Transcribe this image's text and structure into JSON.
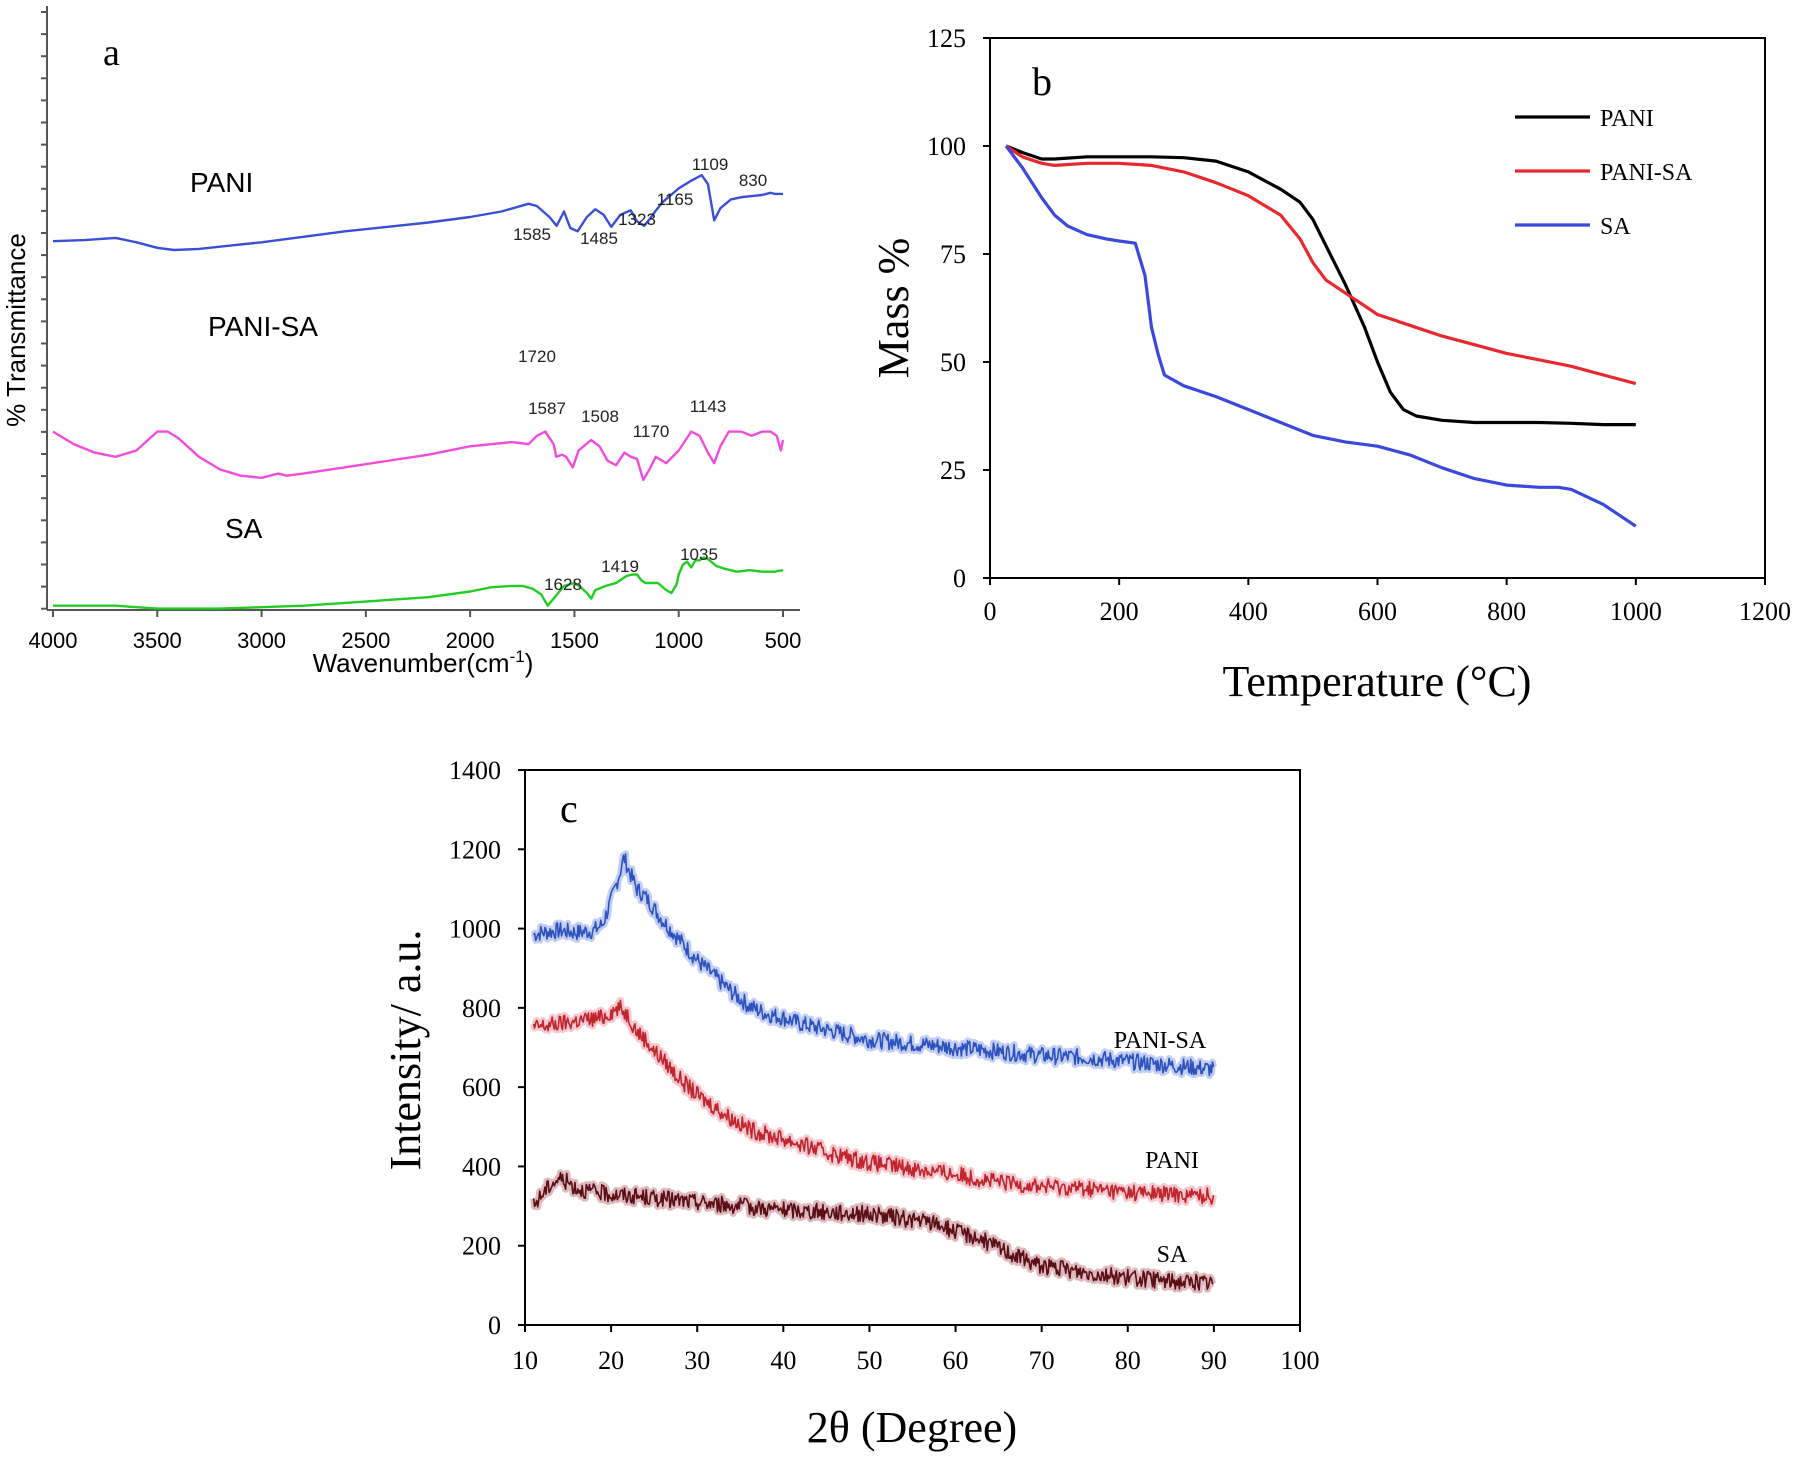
{
  "chart_data": [
    {
      "panel_label": "a",
      "type": "line",
      "xlabel": "Wavenumber(cm",
      "xlabel_sup": "-1",
      "xlabel_end": ")",
      "ylabel": "% Transmittance",
      "xlim": [
        4000,
        500
      ],
      "x_reversed": true,
      "y_ticks_labeled": false,
      "xticks": [
        4000,
        3500,
        3000,
        2500,
        2000,
        1500,
        1000,
        500
      ],
      "series": [
        {
          "name": "PANI",
          "color": "#3a4fd6",
          "x": [
            4000,
            3850,
            3700,
            3600,
            3500,
            3420,
            3300,
            3150,
            3000,
            2800,
            2600,
            2400,
            2200,
            2000,
            1850,
            1720,
            1680,
            1620,
            1585,
            1550,
            1520,
            1485,
            1440,
            1400,
            1360,
            1323,
            1280,
            1230,
            1200,
            1165,
            1140,
            1109,
            1080,
            1000,
            940,
            890,
            860,
            830,
            800,
            750,
            700,
            650,
            600,
            560,
            540,
            500
          ],
          "y": [
            58,
            59,
            61,
            57,
            52,
            50,
            51,
            54,
            57,
            62,
            67,
            71,
            75,
            80,
            85,
            92,
            90,
            80,
            72,
            85,
            70,
            67,
            80,
            87,
            82,
            71,
            82,
            86,
            76,
            72,
            78,
            86,
            93,
            106,
            113,
            118,
            110,
            77,
            88,
            96,
            98,
            99,
            100,
            102,
            101,
            101
          ]
        },
        {
          "name": "PANI-SA",
          "color": "#f04ddc",
          "x": [
            4000,
            3900,
            3800,
            3700,
            3600,
            3500,
            3450,
            3400,
            3300,
            3200,
            3100,
            3000,
            2920,
            2880,
            2800,
            2600,
            2400,
            2200,
            2000,
            1900,
            1800,
            1720,
            1680,
            1640,
            1600,
            1587,
            1560,
            1540,
            1508,
            1480,
            1420,
            1380,
            1340,
            1300,
            1260,
            1230,
            1200,
            1170,
            1140,
            1110,
            1060,
            1000,
            940,
            900,
            860,
            830,
            800,
            760,
            700,
            650,
            600,
            560,
            530,
            510,
            500
          ],
          "y": [
            54,
            48,
            44,
            42,
            45,
            54,
            54,
            51,
            42,
            36,
            33,
            32,
            34,
            33,
            34,
            37,
            40,
            43,
            47,
            48,
            49,
            48,
            52,
            54,
            48,
            42,
            43,
            42,
            37,
            45,
            50,
            47,
            40,
            38,
            44,
            42,
            41,
            31,
            36,
            42,
            39,
            45,
            54,
            52,
            44,
            39,
            47,
            54,
            54,
            52,
            54,
            54,
            52,
            45,
            50
          ]
        },
        {
          "name": "SA",
          "color": "#22cc22",
          "x": [
            4000,
            3900,
            3800,
            3700,
            3600,
            3500,
            3400,
            3300,
            3200,
            3000,
            2800,
            2600,
            2400,
            2200,
            2000,
            1900,
            1800,
            1750,
            1700,
            1660,
            1628,
            1600,
            1550,
            1500,
            1470,
            1440,
            1419,
            1400,
            1350,
            1300,
            1250,
            1220,
            1200,
            1180,
            1160,
            1100,
            1060,
            1035,
            1010,
            1000,
            980,
            960,
            940,
            920,
            900,
            880,
            860,
            820,
            780,
            720,
            660,
            600,
            540,
            500
          ],
          "y": [
            3,
            3,
            3,
            3,
            2,
            1,
            1,
            1,
            1,
            2,
            3,
            5,
            7,
            9,
            13,
            16,
            17,
            17,
            15,
            11,
            3,
            8,
            17,
            19,
            16,
            12,
            8,
            14,
            17,
            19,
            24,
            25,
            25,
            21,
            19,
            19,
            14,
            12,
            18,
            25,
            32,
            34,
            30,
            35,
            35,
            37,
            36,
            31,
            29,
            27,
            28,
            27,
            27,
            28
          ]
        }
      ],
      "series_labels": [
        "PANI",
        "PANI-SA",
        "SA"
      ],
      "annotations": [
        {
          "text": "1585",
          "x": 1585,
          "series": "PANI"
        },
        {
          "text": "1485",
          "x": 1485,
          "series": "PANI"
        },
        {
          "text": "1323",
          "x": 1323,
          "series": "PANI"
        },
        {
          "text": "1165",
          "x": 1165,
          "series": "PANI"
        },
        {
          "text": "1109",
          "x": 1109,
          "series": "PANI"
        },
        {
          "text": "830",
          "x": 830,
          "series": "PANI"
        },
        {
          "text": "1720",
          "x": 1720,
          "series": "PANI-SA"
        },
        {
          "text": "1587",
          "x": 1587,
          "series": "PANI-SA"
        },
        {
          "text": "1508",
          "x": 1508,
          "series": "PANI-SA"
        },
        {
          "text": "1170",
          "x": 1170,
          "series": "PANI-SA"
        },
        {
          "text": "1143",
          "x": 1143,
          "series": "PANI-SA"
        },
        {
          "text": "1628",
          "x": 1628,
          "series": "SA"
        },
        {
          "text": "1419",
          "x": 1419,
          "series": "SA"
        },
        {
          "text": "1035",
          "x": 1035,
          "series": "SA"
        }
      ]
    },
    {
      "panel_label": "b",
      "type": "line",
      "xlabel": "Temperature (°C)",
      "ylabel": "Mass %",
      "xlim": [
        0,
        1200
      ],
      "ylim": [
        0,
        125
      ],
      "xticks": [
        0,
        200,
        400,
        600,
        800,
        1000,
        1200
      ],
      "yticks": [
        0,
        25,
        50,
        75,
        100,
        125
      ],
      "legend_position": "top-right",
      "series": [
        {
          "name": "PANI",
          "color": "#000000",
          "x": [
            25,
            50,
            80,
            100,
            150,
            200,
            250,
            300,
            350,
            400,
            450,
            480,
            500,
            520,
            550,
            580,
            600,
            620,
            640,
            660,
            700,
            750,
            800,
            850,
            900,
            950,
            1000
          ],
          "y": [
            100,
            98.5,
            97,
            97,
            97.5,
            97.5,
            97.5,
            97.3,
            96.5,
            94,
            90,
            87,
            83,
            77,
            68,
            58,
            50,
            43,
            39,
            37.5,
            36.5,
            36,
            36,
            36,
            35.8,
            35.5,
            35.5
          ]
        },
        {
          "name": "PANI-SA",
          "color": "#e8282e",
          "x": [
            25,
            50,
            80,
            100,
            150,
            200,
            250,
            300,
            350,
            400,
            450,
            480,
            500,
            520,
            550,
            580,
            600,
            650,
            700,
            750,
            800,
            850,
            900,
            950,
            1000
          ],
          "y": [
            100,
            97.5,
            96,
            95.5,
            96,
            96,
            95.5,
            94,
            91.5,
            88.5,
            84,
            78.5,
            73,
            69,
            66,
            63,
            61,
            58.5,
            56,
            54,
            52,
            50.5,
            49,
            47,
            45
          ]
        },
        {
          "name": "SA",
          "color": "#3b48dc",
          "x": [
            25,
            50,
            80,
            100,
            120,
            150,
            180,
            200,
            225,
            240,
            250,
            260,
            270,
            300,
            350,
            400,
            450,
            500,
            550,
            600,
            650,
            700,
            750,
            800,
            850,
            880,
            900,
            950,
            1000
          ],
          "y": [
            100,
            95,
            88,
            84,
            81.5,
            79.5,
            78.5,
            78,
            77.5,
            70,
            58,
            52,
            47,
            44.5,
            42,
            39,
            36,
            33,
            31.5,
            30.5,
            28.5,
            25.5,
            23,
            21.5,
            21,
            21,
            20.5,
            17,
            12
          ]
        }
      ]
    },
    {
      "panel_label": "c",
      "type": "line",
      "xlabel": "2θ (Degree)",
      "ylabel": "Intensity/ a.u.",
      "xlim": [
        10,
        100
      ],
      "ylim": [
        0,
        1400
      ],
      "xticks": [
        10,
        20,
        30,
        40,
        50,
        60,
        70,
        80,
        90,
        100
      ],
      "yticks": [
        0,
        200,
        400,
        600,
        800,
        1000,
        1200,
        1400
      ],
      "series": [
        {
          "name": "PANI-SA",
          "color": "#2d52c0",
          "x": [
            11,
            12,
            14,
            16,
            18,
            19,
            20,
            21,
            21.5,
            22,
            23,
            24,
            26,
            28,
            30,
            32,
            34,
            36,
            38,
            40,
            42,
            45,
            50,
            55,
            60,
            65,
            70,
            75,
            80,
            85,
            90
          ],
          "y": [
            985,
            990,
            995,
            990,
            995,
            1010,
            1070,
            1140,
            1180,
            1150,
            1100,
            1080,
            1020,
            970,
            920,
            880,
            840,
            805,
            785,
            775,
            760,
            745,
            720,
            710,
            700,
            690,
            680,
            675,
            665,
            655,
            645
          ]
        },
        {
          "name": "PANI",
          "color": "#c0242c",
          "x": [
            11,
            14,
            17,
            19,
            20,
            21,
            22,
            23,
            24,
            25,
            26,
            28,
            30,
            32,
            34,
            36,
            38,
            40,
            45,
            50,
            55,
            60,
            65,
            70,
            75,
            80,
            85,
            90
          ],
          "y": [
            750,
            760,
            770,
            775,
            790,
            800,
            780,
            740,
            720,
            690,
            670,
            620,
            580,
            550,
            520,
            495,
            480,
            470,
            435,
            410,
            395,
            380,
            360,
            350,
            345,
            335,
            330,
            325
          ]
        },
        {
          "name": "SA",
          "color": "#5a0f15",
          "x": [
            11,
            12,
            13,
            14,
            15,
            16,
            18,
            20,
            25,
            30,
            35,
            40,
            45,
            50,
            55,
            58,
            60,
            62,
            64,
            66,
            68,
            70,
            74,
            78,
            82,
            86,
            90
          ],
          "y": [
            300,
            330,
            355,
            370,
            360,
            345,
            335,
            330,
            320,
            310,
            300,
            290,
            285,
            280,
            265,
            255,
            235,
            225,
            205,
            185,
            165,
            150,
            135,
            125,
            115,
            110,
            105
          ]
        }
      ],
      "series_labels": [
        "PANI-SA",
        "PANI",
        "SA"
      ]
    }
  ]
}
